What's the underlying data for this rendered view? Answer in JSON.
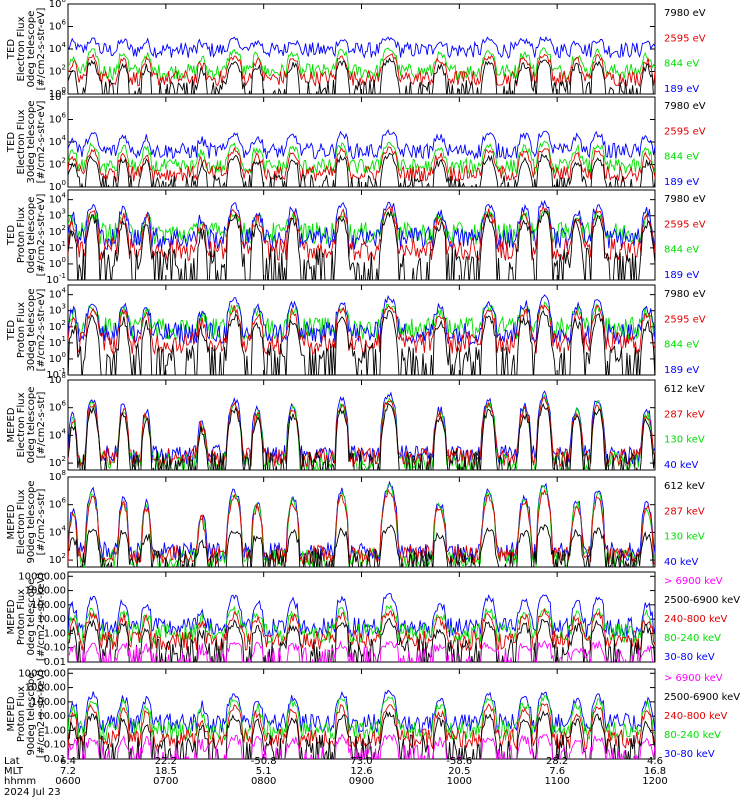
{
  "colors": {
    "black": "#000000",
    "red": "#e00000",
    "green": "#00e000",
    "blue": "#0000ff",
    "magenta": "#ff00ff"
  },
  "bottom_axis": {
    "row_labels": [
      "Lat",
      "MLT",
      "hhmm",
      "2024 Jul 23"
    ],
    "ticks": [
      {
        "lat": "6.4",
        "mlt": "7.2",
        "hhmm": "0600"
      },
      {
        "lat": "22.2",
        "mlt": "18.5",
        "hhmm": "0700"
      },
      {
        "lat": "-50.8",
        "mlt": "5.1",
        "hhmm": "0800"
      },
      {
        "lat": "73.0",
        "mlt": "12.6",
        "hhmm": "0900"
      },
      {
        "lat": "-58.6",
        "mlt": "20.5",
        "hhmm": "1000"
      },
      {
        "lat": "28.2",
        "mlt": "7.6",
        "hhmm": "1100"
      },
      {
        "lat": "4.6",
        "mlt": "16.8",
        "hhmm": "1200"
      }
    ]
  },
  "chart_data": [
    {
      "type": "line",
      "ylabel": [
        "TED",
        "Electron Flux",
        "0deg telescope",
        "[#/cm2-s-str-eV]"
      ],
      "yscale": "log",
      "ytick_labels": [
        "10^0",
        "10^2",
        "10^4",
        "10^6",
        "10^8"
      ],
      "ylim_exp": [
        0,
        8
      ],
      "legend": [
        {
          "label": "7980 eV",
          "color": "black"
        },
        {
          "label": "2595 eV",
          "color": "red"
        },
        {
          "label": "844 eV",
          "color": "green"
        },
        {
          "label": "189 eV",
          "color": "blue"
        }
      ],
      "series": [
        {
          "color": "blue",
          "base": 3.9,
          "peak": 4.8
        },
        {
          "color": "green",
          "base": 2.0,
          "peak": 3.8
        },
        {
          "color": "red",
          "base": 1.4,
          "peak": 3.3
        },
        {
          "color": "black",
          "base": 0.6,
          "peak": 2.8
        }
      ]
    },
    {
      "type": "line",
      "ylabel": [
        "TED",
        "Electron Flux",
        "30deg telescope",
        "[#/cm2-s-str-eV]"
      ],
      "yscale": "log",
      "ytick_labels": [
        "10^0",
        "10^2",
        "10^4",
        "10^6",
        "10^8"
      ],
      "ylim_exp": [
        0,
        8
      ],
      "legend": [
        {
          "label": "7980 eV",
          "color": "black"
        },
        {
          "label": "2595 eV",
          "color": "red"
        },
        {
          "label": "844 eV",
          "color": "green"
        },
        {
          "label": "189 eV",
          "color": "blue"
        }
      ],
      "series": [
        {
          "color": "blue",
          "base": 3.2,
          "peak": 4.7
        },
        {
          "color": "green",
          "base": 1.8,
          "peak": 3.7
        },
        {
          "color": "red",
          "base": 1.2,
          "peak": 3.2
        },
        {
          "color": "black",
          "base": 0.4,
          "peak": 2.6
        }
      ]
    },
    {
      "type": "line",
      "ylabel": [
        "TED",
        "Proton Flux",
        "0deg telescope",
        "[#/cm2-s-str-eV]"
      ],
      "yscale": "log",
      "ytick_labels": [
        "10^-1",
        "10^0",
        "10^1",
        "10^2",
        "10^3",
        "10^4"
      ],
      "ylim_exp": [
        -1,
        4.6
      ],
      "legend": [
        {
          "label": "7980 eV",
          "color": "black"
        },
        {
          "label": "2595 eV",
          "color": "red"
        },
        {
          "label": "844 eV",
          "color": "green"
        },
        {
          "label": "189 eV",
          "color": "blue"
        }
      ],
      "series": [
        {
          "color": "green",
          "base": 1.9,
          "peak": 3.1
        },
        {
          "color": "blue",
          "base": 1.6,
          "peak": 3.6
        },
        {
          "color": "red",
          "base": 0.9,
          "peak": 3.2
        },
        {
          "color": "black",
          "base": 0.3,
          "peak": 2.9
        }
      ]
    },
    {
      "type": "line",
      "ylabel": [
        "TED",
        "Proton Flux",
        "30deg telescope",
        "[#/cm2-s-str-eV]"
      ],
      "yscale": "log",
      "ytick_labels": [
        "10^-1",
        "10^0",
        "10^1",
        "10^2",
        "10^3",
        "10^4"
      ],
      "ylim_exp": [
        -1,
        4.6
      ],
      "legend": [
        {
          "label": "7980 eV",
          "color": "black"
        },
        {
          "label": "2595 eV",
          "color": "red"
        },
        {
          "label": "844 eV",
          "color": "green"
        },
        {
          "label": "189 eV",
          "color": "blue"
        }
      ],
      "series": [
        {
          "color": "green",
          "base": 1.9,
          "peak": 3.2
        },
        {
          "color": "blue",
          "base": 1.6,
          "peak": 3.6
        },
        {
          "color": "red",
          "base": 1.0,
          "peak": 3.1
        },
        {
          "color": "black",
          "base": 0.3,
          "peak": 2.6
        }
      ]
    },
    {
      "type": "line",
      "ylabel": [
        "MEPED",
        "Electron Flux",
        "0deg telescope",
        "[#/cm2-s-str]"
      ],
      "yscale": "log",
      "ytick_labels": [
        "10^2",
        "10^4",
        "10^6",
        "10^8"
      ],
      "ylim_exp": [
        1.5,
        8
      ],
      "legend": [
        {
          "label": "612 keV",
          "color": "black"
        },
        {
          "label": "287 keV",
          "color": "red"
        },
        {
          "label": "130 keV",
          "color": "green"
        },
        {
          "label": "40 keV",
          "color": "blue"
        }
      ],
      "series": [
        {
          "color": "blue",
          "base": 2.6,
          "peak": 6.6
        },
        {
          "color": "green",
          "base": 2.1,
          "peak": 6.3
        },
        {
          "color": "red",
          "base": 2.4,
          "peak": 6.2
        },
        {
          "color": "black",
          "base": 2.2,
          "peak": 5.8
        }
      ]
    },
    {
      "type": "line",
      "ylabel": [
        "MEPED",
        "Electron Flux",
        "90deg telescope",
        "[#/cm2-s-str]"
      ],
      "yscale": "log",
      "ytick_labels": [
        "10^2",
        "10^4",
        "10^6",
        "10^8"
      ],
      "ylim_exp": [
        1.5,
        8
      ],
      "legend": [
        {
          "label": "612 keV",
          "color": "black"
        },
        {
          "label": "287 keV",
          "color": "red"
        },
        {
          "label": "130 keV",
          "color": "green"
        },
        {
          "label": "40 keV",
          "color": "blue"
        }
      ],
      "series": [
        {
          "color": "blue",
          "base": 2.6,
          "peak": 7.0
        },
        {
          "color": "green",
          "base": 2.1,
          "peak": 6.8
        },
        {
          "color": "red",
          "base": 2.4,
          "peak": 6.5
        },
        {
          "color": "black",
          "base": 2.2,
          "peak": 4.2
        }
      ]
    },
    {
      "type": "line",
      "ylabel": [
        "MEPED",
        "Proton Flux",
        "0deg telescope",
        "[#/cm2-s-str-keV]"
      ],
      "yscale": "log",
      "ytick_labels": [
        "0.01",
        "0.10",
        "1.00",
        "10.00",
        "100.00",
        "1000.00",
        "10000.00"
      ],
      "ylim_exp": [
        -2,
        4.3
      ],
      "legend": [
        {
          "label": "> 6900 keV",
          "color": "magenta"
        },
        {
          "label": "2500-6900 keV",
          "color": "black"
        },
        {
          "label": "240-800 keV",
          "color": "red"
        },
        {
          "label": "80-240 keV",
          "color": "green"
        },
        {
          "label": "30-80 keV",
          "color": "blue"
        }
      ],
      "series": [
        {
          "color": "blue",
          "base": 0.4,
          "peak": 2.5
        },
        {
          "color": "green",
          "base": 0.0,
          "peak": 1.6
        },
        {
          "color": "red",
          "base": -0.5,
          "peak": 1.3
        },
        {
          "color": "black",
          "base": -1.0,
          "peak": 0.7
        },
        {
          "color": "magenta",
          "base": -1.6,
          "peak": -0.8
        }
      ]
    },
    {
      "type": "line",
      "ylabel": [
        "MEPED",
        "Proton Flux",
        "90deg telescope",
        "[#/cm2-s-str-keV]"
      ],
      "yscale": "log",
      "ytick_labels": [
        "0.01",
        "0.10",
        "1.00",
        "10.00",
        "100.00",
        "1000.00",
        "10000.00"
      ],
      "ylim_exp": [
        -2,
        4.3
      ],
      "legend": [
        {
          "label": "> 6900 keV",
          "color": "magenta"
        },
        {
          "label": "2500-6900 keV",
          "color": "black"
        },
        {
          "label": "240-800 keV",
          "color": "red"
        },
        {
          "label": "80-240 keV",
          "color": "green"
        },
        {
          "label": "30-80 keV",
          "color": "blue"
        }
      ],
      "series": [
        {
          "color": "blue",
          "base": 0.5,
          "peak": 2.5
        },
        {
          "color": "green",
          "base": 0.0,
          "peak": 2.1
        },
        {
          "color": "red",
          "base": -0.6,
          "peak": 1.6
        },
        {
          "color": "black",
          "base": -1.0,
          "peak": 1.0
        },
        {
          "color": "magenta",
          "base": -1.7,
          "peak": -0.5
        }
      ]
    }
  ],
  "passes": [
    {
      "hhmm": "0603",
      "width": 0.22,
      "scale": 0.7
    },
    {
      "hhmm": "0615",
      "width": 0.35,
      "scale": 1.0
    },
    {
      "hhmm": "0634",
      "width": 0.28,
      "scale": 0.9
    },
    {
      "hhmm": "0648",
      "width": 0.25,
      "scale": 0.8
    },
    {
      "hhmm": "0722",
      "width": 0.25,
      "scale": 0.6
    },
    {
      "hhmm": "0742",
      "width": 0.4,
      "scale": 1.0
    },
    {
      "hhmm": "0756",
      "width": 0.3,
      "scale": 0.8
    },
    {
      "hhmm": "0818",
      "width": 0.32,
      "scale": 0.9
    },
    {
      "hhmm": "0848",
      "width": 0.35,
      "scale": 1.0
    },
    {
      "hhmm": "0917",
      "width": 0.45,
      "scale": 1.1
    },
    {
      "hhmm": "0948",
      "width": 0.35,
      "scale": 0.8
    },
    {
      "hhmm": "1018",
      "width": 0.38,
      "scale": 1.0
    },
    {
      "hhmm": "1040",
      "width": 0.35,
      "scale": 0.9
    },
    {
      "hhmm": "1052",
      "width": 0.4,
      "scale": 1.1
    },
    {
      "hhmm": "1112",
      "width": 0.3,
      "scale": 0.85
    },
    {
      "hhmm": "1125",
      "width": 0.35,
      "scale": 1.0
    },
    {
      "hhmm": "1155",
      "width": 0.3,
      "scale": 0.8
    }
  ]
}
